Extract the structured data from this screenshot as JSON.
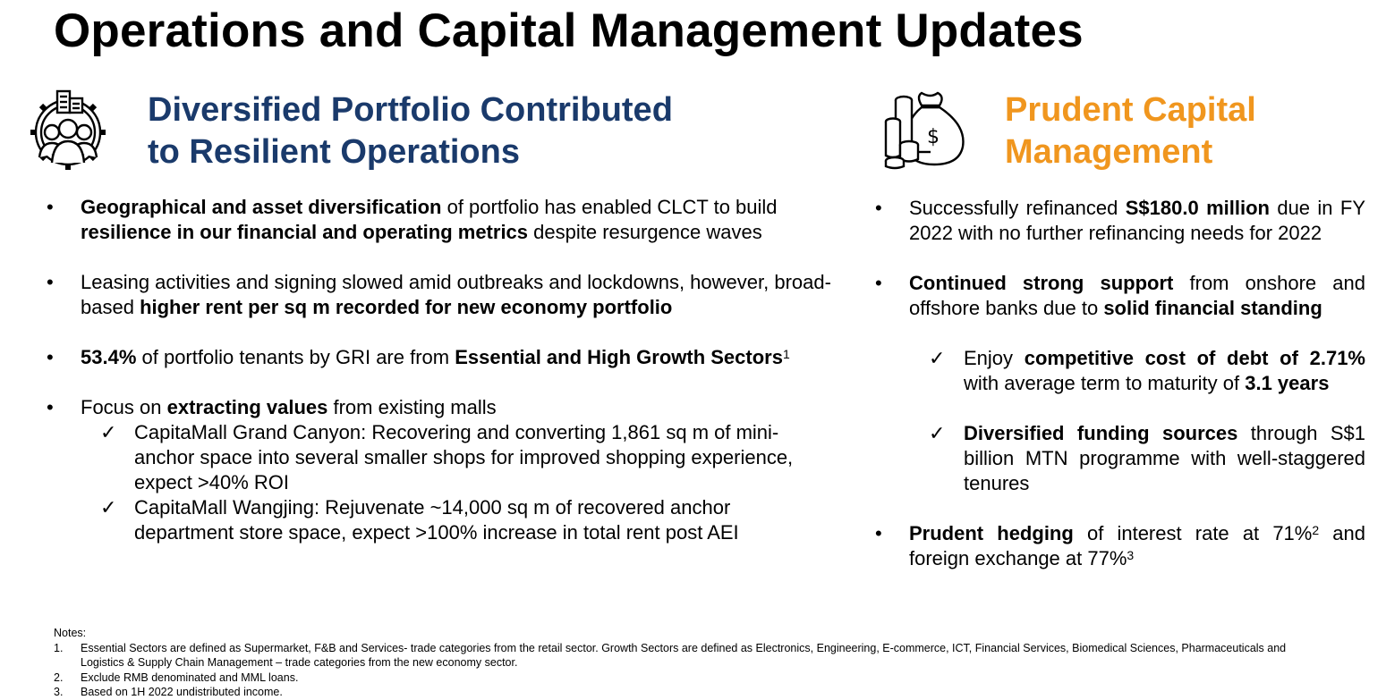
{
  "title": "Operations and Capital Management Updates",
  "left": {
    "icon": "people-buildings-gear-icon",
    "heading_line1": "Diversified Portfolio Contributed",
    "heading_line2": "to Resilient Operations",
    "bullets": [
      {
        "b1": "Geographical and asset diversification",
        "t1": " of portfolio has enabled CLCT to build ",
        "b2": "resilience in our financial and operating metrics",
        "t2": " despite resurgence waves"
      },
      {
        "t1": "Leasing activities and signing slowed amid outbreaks and lockdowns, however, broad-based ",
        "b1": "higher rent per sq m recorded for new economy portfolio"
      },
      {
        "b1": "53.4%",
        "t1": " of portfolio tenants by GRI are from ",
        "b2": "Essential and High Growth Sectors",
        "sup": "1"
      },
      {
        "t1": "Focus on ",
        "b1": "extracting values",
        "t2": " from existing malls",
        "subs": [
          "CapitaMall Grand Canyon: Recovering and converting 1,861 sq m of mini-anchor space into several smaller shops for improved shopping experience, expect >40% ROI",
          "CapitaMall Wangjing: Rejuvenate ~14,000 sq m of recovered anchor department store space, expect >100% increase in total rent post AEI"
        ]
      }
    ]
  },
  "right": {
    "icon": "money-bag-coins-icon",
    "heading_line1": "Prudent Capital",
    "heading_line2": "Management",
    "bullets": [
      {
        "t1": "Successfully refinanced ",
        "b1": "S$180.0 million",
        "t2": " due in FY 2022 with no further refinancing needs for 2022"
      },
      {
        "b1": "Continued strong support",
        "t1": " from onshore and offshore banks due to ",
        "b2": "solid financial standing"
      }
    ],
    "subs": [
      {
        "t1": "Enjoy ",
        "b1": "competitive cost of debt of 2.71%",
        "t2": " with average term to maturity of ",
        "b2": "3.1 years"
      },
      {
        "b1": "Diversified funding sources",
        "t1": " through S$1 billion MTN programme with well-staggered tenures"
      }
    ],
    "last": {
      "b1": "Prudent hedging",
      "t1": " of interest rate at 71%",
      "sup1": "2",
      "t2": " and foreign exchange at 77%",
      "sup2": "3"
    }
  },
  "notes": {
    "label": "Notes:",
    "items": [
      {
        "num": "1.",
        "text": "Essential Sectors are defined as Supermarket, F&B and Services- trade categories from the retail sector. Growth Sectors are defined as Electronics, Engineering, E-commerce, ICT, Financial Services, Biomedical Sciences, Pharmaceuticals and Logistics & Supply Chain Management – trade categories from the new economy sector."
      },
      {
        "num": "2.",
        "text": "Exclude RMB denominated and MML loans."
      },
      {
        "num": "3.",
        "text": "Based on 1H 2022 undistributed income."
      }
    ]
  },
  "symbols": {
    "bullet": "•",
    "check": "✓"
  }
}
